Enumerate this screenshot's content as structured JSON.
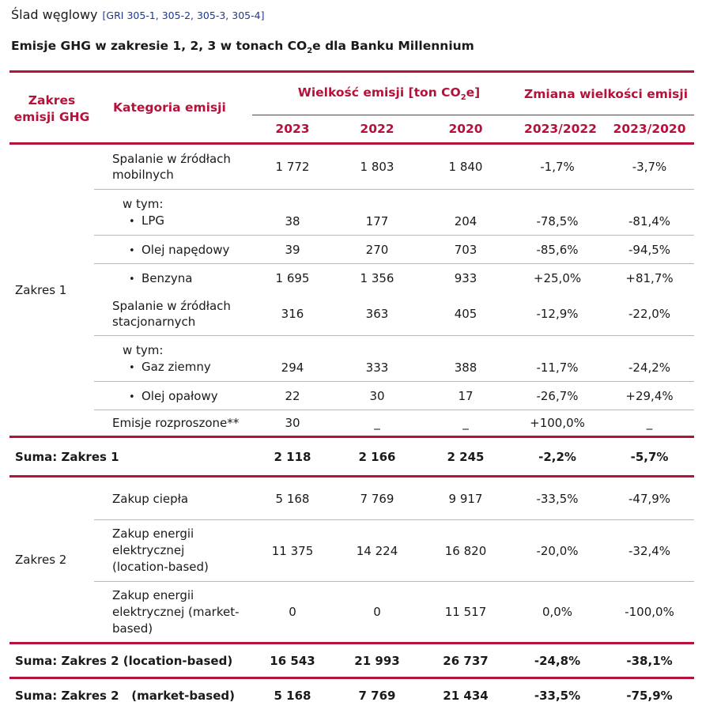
{
  "title": "Ślad węglowy",
  "gri": "[GRI 305-1, 305-2, 305-3, 305-4]",
  "subtitle_pre": "Emisje GHG w zakresie 1, 2, 3 w tonach CO",
  "subtitle_sub": "2",
  "subtitle_post": "e dla Banku Millennium",
  "header": {
    "scope": "Zakres emisji GHG",
    "category": "Kategoria emisji",
    "volume_pre": "Wielkość emisji [ton CO",
    "volume_sub": "2",
    "volume_post": "e]",
    "change": "Zmiana wielkości emisji",
    "years": [
      "2023",
      "2022",
      "2020"
    ],
    "changes": [
      "2023/2022",
      "2023/2020"
    ]
  },
  "scope1": {
    "label": "Zakres 1",
    "rows": [
      {
        "cat": "Spalanie w źródłach mobilnych",
        "v": [
          "1 772",
          "1 803",
          "1 840"
        ],
        "c": [
          "-1,7%",
          "-3,7%"
        ]
      },
      {
        "wtym": "w tym:",
        "cat": "LPG",
        "v": [
          "38",
          "177",
          "204"
        ],
        "c": [
          "-78,5%",
          "-81,4%"
        ]
      },
      {
        "cat": "Olej napędowy",
        "v": [
          "39",
          "270",
          "703"
        ],
        "c": [
          "-85,6%",
          "-94,5%"
        ]
      },
      {
        "cat": "Benzyna",
        "v": [
          "1 695",
          "1 356",
          "933"
        ],
        "c": [
          "+25,0%",
          "+81,7%"
        ]
      },
      {
        "cat": "Spalanie w źródłach stacjonarnych",
        "v": [
          "316",
          "363",
          "405"
        ],
        "c": [
          "-12,9%",
          "-22,0%"
        ]
      },
      {
        "wtym": "w tym:",
        "cat": "Gaz ziemny",
        "v": [
          "294",
          "333",
          "388"
        ],
        "c": [
          "-11,7%",
          "-24,2%"
        ]
      },
      {
        "cat": "Olej opałowy",
        "v": [
          "22",
          "30",
          "17"
        ],
        "c": [
          "-26,7%",
          "+29,4%"
        ]
      },
      {
        "cat": "Emisje rozproszone**",
        "v": [
          "30",
          "_",
          "_"
        ],
        "c": [
          "+100,0%",
          "_"
        ]
      }
    ],
    "sum": {
      "label": "Suma: Zakres 1",
      "v": [
        "2 118",
        "2 166",
        "2 245"
      ],
      "c": [
        "-2,2%",
        "-5,7%"
      ]
    }
  },
  "scope2": {
    "label": "Zakres 2",
    "rows": [
      {
        "cat": "Zakup ciepła",
        "v": [
          "5 168",
          "7 769",
          "9 917"
        ],
        "c": [
          "-33,5%",
          "-47,9%"
        ]
      },
      {
        "cat": "Zakup energii elektrycznej (location-based)",
        "v": [
          "11 375",
          "14 224",
          "16 820"
        ],
        "c": [
          "-20,0%",
          "-32,4%"
        ]
      },
      {
        "cat": "Zakup energii elektrycznej (market-based)",
        "v": [
          "0",
          "0",
          "11 517"
        ],
        "c": [
          "0,0%",
          "-100,0%"
        ]
      }
    ],
    "sum_location": {
      "label": "Suma: Zakres 2 (location-based)",
      "v": [
        "16 543",
        "21 993",
        "26 737"
      ],
      "c": [
        "-24,8%",
        "-38,1%"
      ]
    },
    "sum_market": {
      "label": "Suma: Zakres 2   (market-based)",
      "v": [
        "5 168",
        "7 769",
        "21 434"
      ],
      "c": [
        "-33,5%",
        "-75,9%"
      ]
    }
  },
  "colors": {
    "accent": "#b5123b",
    "gri": "#1f3a8a",
    "divider": "#b8b8b8"
  }
}
